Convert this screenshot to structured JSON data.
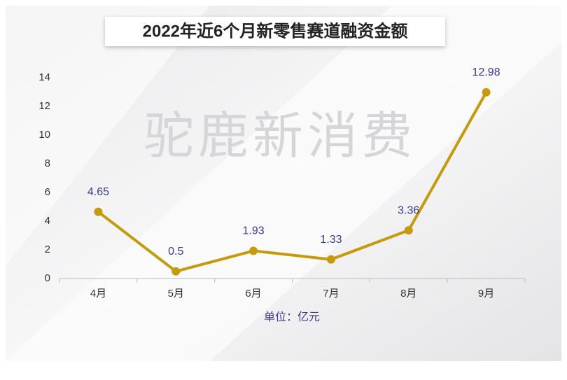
{
  "chart_data": {
    "type": "line",
    "title": "2022年近6个月新零售赛道融资金额",
    "watermark": "驼鹿新消费",
    "x_label": "单位：亿元",
    "categories": [
      "4月",
      "5月",
      "6月",
      "7月",
      "8月",
      "9月"
    ],
    "values": [
      4.65,
      0.5,
      1.93,
      1.33,
      3.36,
      12.98
    ],
    "color": "#c49a0e",
    "label_color": "#3a3a8c",
    "ylim": [
      0,
      14
    ],
    "yticks": [
      0,
      2,
      4,
      6,
      8,
      10,
      12,
      14
    ],
    "grid": false
  }
}
